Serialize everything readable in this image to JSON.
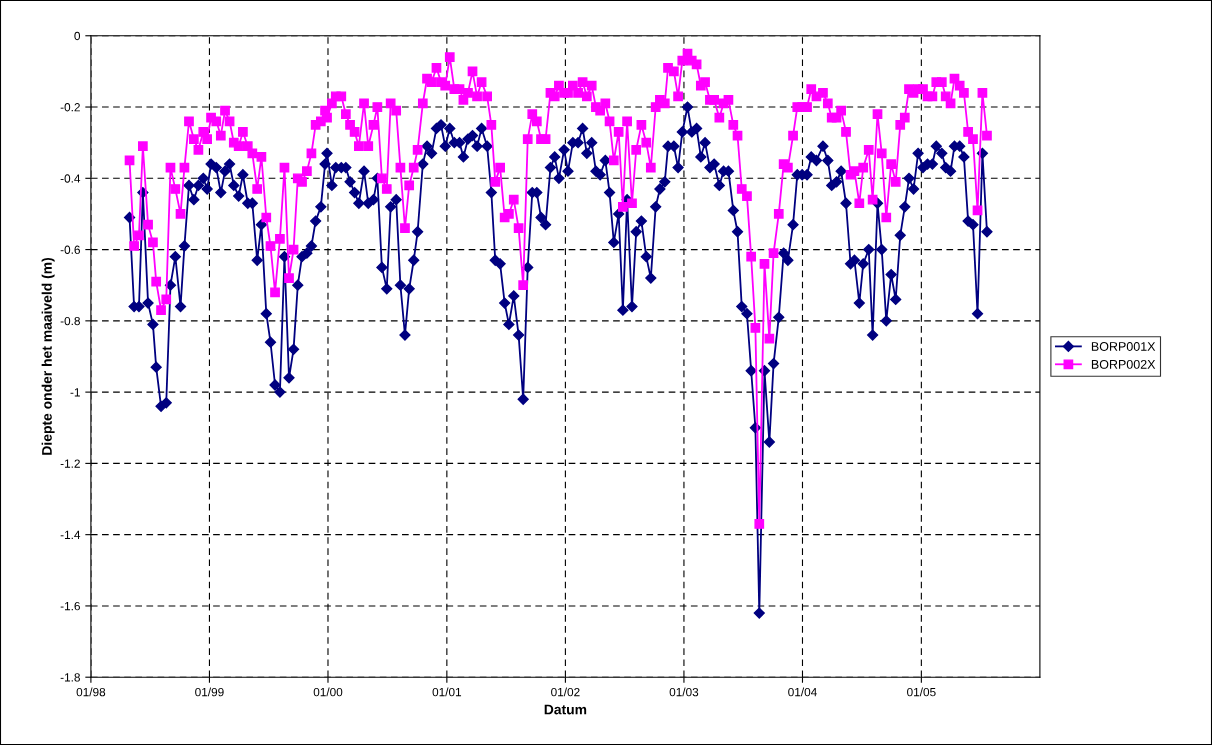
{
  "chart_data": {
    "type": "line",
    "xlabel": "Datum",
    "ylabel": "Diepte onder het maaiveld (m)",
    "x": [
      "1998-04-30",
      "1998-05-14",
      "1998-05-29",
      "1998-06-10",
      "1998-06-26",
      "1998-07-11",
      "1998-07-21",
      "1998-08-05",
      "1998-08-21",
      "1998-09-03",
      "1998-09-18",
      "1998-10-04",
      "1998-10-16",
      "1998-10-30",
      "1998-11-14",
      "1998-11-28",
      "1998-12-13",
      "1998-12-25",
      "1999-01-06",
      "1999-01-22",
      "1999-02-05",
      "1999-02-18",
      "1999-03-04",
      "1999-03-17",
      "1999-04-01",
      "1999-04-14",
      "1999-04-29",
      "1999-05-13",
      "1999-05-28",
      "1999-06-10",
      "1999-06-25",
      "1999-07-08",
      "1999-07-22",
      "1999-08-06",
      "1999-08-20",
      "1999-09-03",
      "1999-09-17",
      "1999-09-30",
      "1999-10-13",
      "1999-10-28",
      "1999-11-11",
      "1999-11-24",
      "1999-12-10",
      "1999-12-23",
      "1999-12-29",
      "2000-01-13",
      "2000-01-25",
      "2000-02-11",
      "2000-02-25",
      "2000-03-09",
      "2000-03-23",
      "2000-04-05",
      "2000-04-21",
      "2000-05-04",
      "2000-05-20",
      "2000-06-01",
      "2000-06-15",
      "2000-06-30",
      "2000-07-12",
      "2000-07-29",
      "2000-08-11",
      "2000-08-25",
      "2000-09-07",
      "2000-09-21",
      "2000-10-03",
      "2000-10-19",
      "2000-11-01",
      "2000-11-15",
      "2000-11-30",
      "2000-12-14",
      "2000-12-27",
      "2001-01-10",
      "2001-01-24",
      "2001-02-09",
      "2001-02-21",
      "2001-03-07",
      "2001-03-21",
      "2001-04-04",
      "2001-04-18",
      "2001-05-05",
      "2001-05-18",
      "2001-05-30",
      "2001-06-14",
      "2001-06-28",
      "2001-07-11",
      "2001-07-26",
      "2001-08-10",
      "2001-08-24",
      "2001-09-07",
      "2001-09-21",
      "2001-10-05",
      "2001-10-18",
      "2001-11-01",
      "2001-11-16",
      "2001-11-29",
      "2001-12-12",
      "2001-12-28",
      "2002-01-09",
      "2002-01-24",
      "2002-02-09",
      "2002-02-23",
      "2002-03-08",
      "2002-03-23",
      "2002-04-05",
      "2002-04-18",
      "2002-05-04",
      "2002-05-17",
      "2002-05-30",
      "2002-06-14",
      "2002-06-27",
      "2002-07-10",
      "2002-07-25",
      "2002-08-07",
      "2002-08-23",
      "2002-09-07",
      "2002-09-21",
      "2002-10-06",
      "2002-10-19",
      "2002-11-03",
      "2002-11-13",
      "2002-12-01",
      "2002-12-14",
      "2002-12-27",
      "2003-01-12",
      "2003-01-25",
      "2003-02-09",
      "2003-02-22",
      "2003-03-07",
      "2003-03-22",
      "2003-04-04",
      "2003-04-20",
      "2003-05-03",
      "2003-05-18",
      "2003-06-02",
      "2003-06-15",
      "2003-06-28",
      "2003-07-14",
      "2003-07-27",
      "2003-08-09",
      "2003-08-21",
      "2003-09-06",
      "2003-09-21",
      "2003-10-04",
      "2003-10-20",
      "2003-11-04",
      "2003-11-17",
      "2003-12-03",
      "2003-12-16",
      "2003-12-31",
      "2004-01-15",
      "2004-01-28",
      "2004-02-13",
      "2004-03-04",
      "2004-03-19",
      "2004-03-31",
      "2004-04-15",
      "2004-04-29",
      "2004-05-14",
      "2004-05-28",
      "2004-06-09",
      "2004-06-24",
      "2004-07-06",
      "2004-07-23",
      "2004-08-04",
      "2004-08-19",
      "2004-09-01",
      "2004-09-15",
      "2004-09-30",
      "2004-10-14",
      "2004-10-28",
      "2004-11-11",
      "2004-11-24",
      "2004-12-08",
      "2004-12-22",
      "2005-01-06",
      "2005-01-20",
      "2005-02-04",
      "2005-02-16",
      "2005-03-05",
      "2005-03-17",
      "2005-04-01",
      "2005-04-13",
      "2005-04-29",
      "2005-05-12",
      "2005-05-25",
      "2005-06-09",
      "2005-06-23",
      "2005-07-08",
      "2005-07-22"
    ],
    "series": [
      {
        "name": "BORP001X",
        "color": "#000080",
        "marker": "diamond",
        "values": [
          -0.51,
          -0.76,
          -0.76,
          -0.44,
          -0.75,
          -0.81,
          -0.93,
          -1.04,
          -1.03,
          -0.7,
          -0.62,
          -0.76,
          -0.59,
          -0.42,
          -0.46,
          -0.42,
          -0.4,
          -0.43,
          -0.36,
          -0.37,
          -0.44,
          -0.38,
          -0.36,
          -0.42,
          -0.45,
          -0.39,
          -0.47,
          -0.47,
          -0.63,
          -0.53,
          -0.78,
          -0.86,
          -0.98,
          -1.0,
          -0.62,
          -0.96,
          -0.88,
          -0.7,
          -0.62,
          -0.61,
          -0.59,
          -0.52,
          -0.48,
          -0.36,
          -0.33,
          -0.42,
          -0.37,
          -0.37,
          -0.37,
          -0.41,
          -0.44,
          -0.47,
          -0.38,
          -0.47,
          -0.46,
          -0.4,
          -0.65,
          -0.71,
          -0.48,
          -0.46,
          -0.7,
          -0.84,
          -0.71,
          -0.63,
          -0.55,
          -0.36,
          -0.31,
          -0.33,
          -0.26,
          -0.25,
          -0.31,
          -0.26,
          -0.3,
          -0.3,
          -0.34,
          -0.29,
          -0.28,
          -0.31,
          -0.26,
          -0.31,
          -0.44,
          -0.63,
          -0.64,
          -0.75,
          -0.81,
          -0.73,
          -0.84,
          -1.02,
          -0.65,
          -0.44,
          -0.44,
          -0.51,
          -0.53,
          -0.37,
          -0.34,
          -0.4,
          -0.32,
          -0.38,
          -0.3,
          -0.3,
          -0.26,
          -0.33,
          -0.3,
          -0.38,
          -0.39,
          -0.35,
          -0.44,
          -0.58,
          -0.5,
          -0.77,
          -0.46,
          -0.76,
          -0.55,
          -0.52,
          -0.62,
          -0.68,
          -0.48,
          -0.43,
          -0.41,
          -0.31,
          -0.31,
          -0.37,
          -0.27,
          -0.2,
          -0.27,
          -0.26,
          -0.34,
          -0.3,
          -0.37,
          -0.36,
          -0.42,
          -0.38,
          -0.38,
          -0.49,
          -0.55,
          -0.76,
          -0.78,
          -0.94,
          -1.1,
          -1.62,
          -0.94,
          -1.14,
          -0.92,
          -0.79,
          -0.61,
          -0.63,
          -0.53,
          -0.39,
          -0.39,
          -0.39,
          -0.34,
          -0.35,
          -0.31,
          -0.35,
          -0.42,
          -0.41,
          -0.38,
          -0.47,
          -0.64,
          -0.63,
          -0.75,
          -0.64,
          -0.6,
          -0.84,
          -0.47,
          -0.6,
          -0.8,
          -0.67,
          -0.74,
          -0.56,
          -0.48,
          -0.4,
          -0.43,
          -0.33,
          -0.37,
          -0.36,
          -0.36,
          -0.31,
          -0.33,
          -0.37,
          -0.38,
          -0.31,
          -0.31,
          -0.34,
          -0.52,
          -0.53,
          -0.78,
          -0.33,
          -0.55
        ]
      },
      {
        "name": "BORP002X",
        "color": "#ff00ff",
        "marker": "square",
        "values": [
          -0.35,
          -0.59,
          -0.56,
          -0.31,
          -0.53,
          -0.58,
          -0.69,
          -0.77,
          -0.74,
          -0.37,
          -0.43,
          -0.5,
          -0.37,
          -0.24,
          -0.29,
          -0.32,
          -0.27,
          -0.29,
          -0.23,
          -0.24,
          -0.28,
          -0.21,
          -0.24,
          -0.3,
          -0.31,
          -0.27,
          -0.31,
          -0.33,
          -0.43,
          -0.34,
          -0.51,
          -0.59,
          -0.72,
          -0.57,
          -0.37,
          -0.68,
          -0.6,
          -0.4,
          -0.41,
          -0.38,
          -0.33,
          -0.25,
          -0.24,
          -0.21,
          -0.23,
          -0.19,
          -0.17,
          -0.17,
          -0.22,
          -0.25,
          -0.27,
          -0.31,
          -0.19,
          -0.31,
          -0.25,
          -0.2,
          -0.4,
          -0.43,
          -0.19,
          -0.21,
          -0.37,
          -0.54,
          -0.42,
          -0.37,
          -0.32,
          -0.19,
          -0.12,
          -0.13,
          -0.09,
          -0.13,
          -0.14,
          -0.06,
          -0.15,
          -0.15,
          -0.18,
          -0.16,
          -0.1,
          -0.17,
          -0.13,
          -0.17,
          -0.25,
          -0.41,
          -0.37,
          -0.51,
          -0.5,
          -0.46,
          -0.54,
          -0.7,
          -0.29,
          -0.22,
          -0.24,
          -0.29,
          -0.29,
          -0.16,
          -0.17,
          -0.14,
          -0.16,
          -0.16,
          -0.14,
          -0.16,
          -0.13,
          -0.17,
          -0.14,
          -0.2,
          -0.21,
          -0.19,
          -0.24,
          -0.35,
          -0.27,
          -0.48,
          -0.24,
          -0.47,
          -0.32,
          -0.25,
          -0.3,
          -0.37,
          -0.2,
          -0.18,
          -0.19,
          -0.09,
          -0.1,
          -0.17,
          -0.07,
          -0.05,
          -0.07,
          -0.08,
          -0.14,
          -0.13,
          -0.18,
          -0.18,
          -0.23,
          -0.19,
          -0.18,
          -0.25,
          -0.28,
          -0.43,
          -0.45,
          -0.62,
          -0.82,
          -1.37,
          -0.64,
          -0.85,
          -0.61,
          -0.5,
          -0.36,
          -0.37,
          -0.28,
          -0.2,
          -0.2,
          -0.2,
          -0.15,
          -0.17,
          -0.16,
          -0.19,
          -0.23,
          -0.23,
          -0.21,
          -0.27,
          -0.39,
          -0.38,
          -0.47,
          -0.37,
          -0.32,
          -0.46,
          -0.22,
          -0.33,
          -0.51,
          -0.36,
          -0.41,
          -0.25,
          -0.23,
          -0.15,
          -0.16,
          -0.15,
          -0.15,
          -0.17,
          -0.17,
          -0.13,
          -0.13,
          -0.17,
          -0.19,
          -0.12,
          -0.14,
          -0.16,
          -0.27,
          -0.29,
          -0.49,
          -0.16,
          -0.28
        ]
      }
    ],
    "xlim": [
      "1998-01-01",
      "2006-01-01"
    ],
    "xticks": [
      {
        "value": "1998-01-01",
        "label": "01/98"
      },
      {
        "value": "1999-01-01",
        "label": "01/99"
      },
      {
        "value": "2000-01-01",
        "label": "01/00"
      },
      {
        "value": "2001-01-01",
        "label": "01/01"
      },
      {
        "value": "2002-01-01",
        "label": "01/02"
      },
      {
        "value": "2003-01-01",
        "label": "01/03"
      },
      {
        "value": "2004-01-01",
        "label": "01/04"
      },
      {
        "value": "2005-01-01",
        "label": "01/05"
      }
    ],
    "ylim": [
      -1.8,
      0
    ],
    "yticks": [
      -1.8,
      -1.6,
      -1.4,
      -1.2,
      -1,
      -0.8,
      -0.6,
      -0.4,
      -0.2,
      0
    ],
    "grid": true,
    "legend": "right",
    "line_style": "solid"
  }
}
